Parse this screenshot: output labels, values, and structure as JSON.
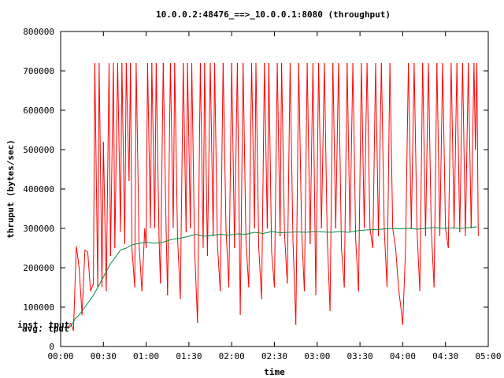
{
  "chart_data": {
    "type": "line",
    "title": "10.0.0.2:48476_==>_10.0.0.1:8080 (throughput)",
    "xlabel": "time",
    "ylabel": "thruput (bytes/sec)",
    "xlim": [
      0,
      300
    ],
    "ylim": [
      0,
      800000
    ],
    "x_ticks": [
      {
        "value": 0,
        "label": "00:00"
      },
      {
        "value": 30,
        "label": "00:30"
      },
      {
        "value": 60,
        "label": "01:00"
      },
      {
        "value": 90,
        "label": "01:30"
      },
      {
        "value": 120,
        "label": "02:00"
      },
      {
        "value": 150,
        "label": "02:30"
      },
      {
        "value": 180,
        "label": "03:00"
      },
      {
        "value": 210,
        "label": "03:30"
      },
      {
        "value": 240,
        "label": "04:00"
      },
      {
        "value": 270,
        "label": "04:30"
      },
      {
        "value": 300,
        "label": "05:00"
      }
    ],
    "y_ticks": [
      {
        "value": 0,
        "label": "0"
      },
      {
        "value": 100000,
        "label": "100000"
      },
      {
        "value": 200000,
        "label": "200000"
      },
      {
        "value": 300000,
        "label": "300000"
      },
      {
        "value": 400000,
        "label": "400000"
      },
      {
        "value": 500000,
        "label": "500000"
      },
      {
        "value": 600000,
        "label": "600000"
      },
      {
        "value": 700000,
        "label": "700000"
      },
      {
        "value": 800000,
        "label": "800000"
      }
    ],
    "grid": false,
    "legend_placement": "left",
    "series": [
      {
        "name": "inst. tput",
        "color": "#ff0000",
        "points": [
          [
            5,
            45000
          ],
          [
            7,
            60000
          ],
          [
            9,
            40000
          ],
          [
            11,
            255000
          ],
          [
            13,
            200000
          ],
          [
            15,
            80000
          ],
          [
            17,
            245000
          ],
          [
            19,
            240000
          ],
          [
            21,
            140000
          ],
          [
            23,
            160000
          ],
          [
            24,
            720000
          ],
          [
            26,
            150000
          ],
          [
            27,
            720000
          ],
          [
            29,
            150000
          ],
          [
            30,
            520000
          ],
          [
            32,
            140000
          ],
          [
            34,
            720000
          ],
          [
            35,
            230000
          ],
          [
            37,
            720000
          ],
          [
            38,
            250000
          ],
          [
            40,
            720000
          ],
          [
            42,
            290000
          ],
          [
            43,
            720000
          ],
          [
            45,
            260000
          ],
          [
            46,
            720000
          ],
          [
            48,
            420000
          ],
          [
            49,
            720000
          ],
          [
            50,
            250000
          ],
          [
            52,
            150000
          ],
          [
            53,
            720000
          ],
          [
            55,
            260000
          ],
          [
            57,
            140000
          ],
          [
            59,
            300000
          ],
          [
            60,
            250000
          ],
          [
            61,
            720000
          ],
          [
            63,
            300000
          ],
          [
            64,
            720000
          ],
          [
            66,
            300000
          ],
          [
            67,
            720000
          ],
          [
            69,
            280000
          ],
          [
            70,
            160000
          ],
          [
            72,
            720000
          ],
          [
            74,
            300000
          ],
          [
            75,
            130000
          ],
          [
            77,
            720000
          ],
          [
            79,
            300000
          ],
          [
            80,
            720000
          ],
          [
            82,
            280000
          ],
          [
            84,
            120000
          ],
          [
            86,
            720000
          ],
          [
            88,
            290000
          ],
          [
            89,
            720000
          ],
          [
            91,
            300000
          ],
          [
            92,
            720000
          ],
          [
            94,
            250000
          ],
          [
            96,
            60000
          ],
          [
            98,
            720000
          ],
          [
            100,
            250000
          ],
          [
            101,
            720000
          ],
          [
            103,
            230000
          ],
          [
            105,
            720000
          ],
          [
            107,
            280000
          ],
          [
            108,
            720000
          ],
          [
            110,
            260000
          ],
          [
            112,
            140000
          ],
          [
            114,
            720000
          ],
          [
            116,
            300000
          ],
          [
            118,
            150000
          ],
          [
            120,
            720000
          ],
          [
            122,
            250000
          ],
          [
            124,
            720000
          ],
          [
            126,
            80000
          ],
          [
            128,
            720000
          ],
          [
            130,
            270000
          ],
          [
            132,
            150000
          ],
          [
            134,
            720000
          ],
          [
            136,
            300000
          ],
          [
            137,
            720000
          ],
          [
            139,
            250000
          ],
          [
            141,
            120000
          ],
          [
            143,
            720000
          ],
          [
            145,
            300000
          ],
          [
            146,
            720000
          ],
          [
            148,
            240000
          ],
          [
            150,
            150000
          ],
          [
            152,
            720000
          ],
          [
            154,
            280000
          ],
          [
            155,
            720000
          ],
          [
            157,
            290000
          ],
          [
            159,
            160000
          ],
          [
            161,
            720000
          ],
          [
            163,
            270000
          ],
          [
            165,
            55000
          ],
          [
            167,
            720000
          ],
          [
            169,
            300000
          ],
          [
            171,
            140000
          ],
          [
            173,
            720000
          ],
          [
            175,
            260000
          ],
          [
            177,
            720000
          ],
          [
            179,
            130000
          ],
          [
            181,
            720000
          ],
          [
            183,
            300000
          ],
          [
            185,
            720000
          ],
          [
            187,
            280000
          ],
          [
            189,
            90000
          ],
          [
            191,
            720000
          ],
          [
            193,
            300000
          ],
          [
            195,
            720000
          ],
          [
            197,
            250000
          ],
          [
            199,
            150000
          ],
          [
            201,
            720000
          ],
          [
            203,
            290000
          ],
          [
            205,
            720000
          ],
          [
            207,
            270000
          ],
          [
            209,
            140000
          ],
          [
            211,
            720000
          ],
          [
            213,
            300000
          ],
          [
            215,
            720000
          ],
          [
            217,
            300000
          ],
          [
            219,
            250000
          ],
          [
            221,
            720000
          ],
          [
            223,
            280000
          ],
          [
            225,
            720000
          ],
          [
            227,
            300000
          ],
          [
            229,
            150000
          ],
          [
            231,
            720000
          ],
          [
            233,
            300000
          ],
          [
            235,
            250000
          ],
          [
            237,
            150000
          ],
          [
            239,
            90000
          ],
          [
            240,
            55000
          ],
          [
            242,
            250000
          ],
          [
            244,
            720000
          ],
          [
            246,
            300000
          ],
          [
            248,
            720000
          ],
          [
            250,
            300000
          ],
          [
            252,
            140000
          ],
          [
            254,
            720000
          ],
          [
            256,
            280000
          ],
          [
            258,
            720000
          ],
          [
            260,
            300000
          ],
          [
            262,
            150000
          ],
          [
            264,
            720000
          ],
          [
            266,
            280000
          ],
          [
            268,
            720000
          ],
          [
            270,
            300000
          ],
          [
            272,
            250000
          ],
          [
            274,
            720000
          ],
          [
            276,
            300000
          ],
          [
            278,
            720000
          ],
          [
            280,
            290000
          ],
          [
            282,
            720000
          ],
          [
            284,
            280000
          ],
          [
            286,
            720000
          ],
          [
            288,
            300000
          ],
          [
            290,
            720000
          ],
          [
            291,
            500000
          ],
          [
            292,
            720000
          ],
          [
            293,
            280000
          ]
        ]
      },
      {
        "name": "avg. tput",
        "color": "#008b3a",
        "points": [
          [
            5,
            45000
          ],
          [
            8,
            55000
          ],
          [
            10,
            70000
          ],
          [
            13,
            80000
          ],
          [
            16,
            95000
          ],
          [
            20,
            115000
          ],
          [
            23,
            130000
          ],
          [
            26,
            150000
          ],
          [
            29,
            170000
          ],
          [
            32,
            190000
          ],
          [
            35,
            210000
          ],
          [
            38,
            225000
          ],
          [
            42,
            245000
          ],
          [
            46,
            250000
          ],
          [
            50,
            258000
          ],
          [
            55,
            262000
          ],
          [
            60,
            265000
          ],
          [
            66,
            262000
          ],
          [
            72,
            265000
          ],
          [
            78,
            272000
          ],
          [
            84,
            275000
          ],
          [
            90,
            280000
          ],
          [
            95,
            285000
          ],
          [
            100,
            280000
          ],
          [
            106,
            282000
          ],
          [
            112,
            285000
          ],
          [
            118,
            283000
          ],
          [
            124,
            286000
          ],
          [
            130,
            285000
          ],
          [
            136,
            290000
          ],
          [
            142,
            287000
          ],
          [
            148,
            292000
          ],
          [
            154,
            289000
          ],
          [
            160,
            290000
          ],
          [
            166,
            291000
          ],
          [
            172,
            290000
          ],
          [
            178,
            292000
          ],
          [
            184,
            291000
          ],
          [
            190,
            290000
          ],
          [
            196,
            292000
          ],
          [
            202,
            290000
          ],
          [
            208,
            294000
          ],
          [
            214,
            296000
          ],
          [
            220,
            297000
          ],
          [
            226,
            298000
          ],
          [
            232,
            300000
          ],
          [
            238,
            299000
          ],
          [
            244,
            300000
          ],
          [
            250,
            298000
          ],
          [
            256,
            300000
          ],
          [
            262,
            302000
          ],
          [
            268,
            300000
          ],
          [
            274,
            301000
          ],
          [
            280,
            300000
          ],
          [
            286,
            302000
          ],
          [
            292,
            304000
          ]
        ]
      }
    ]
  }
}
